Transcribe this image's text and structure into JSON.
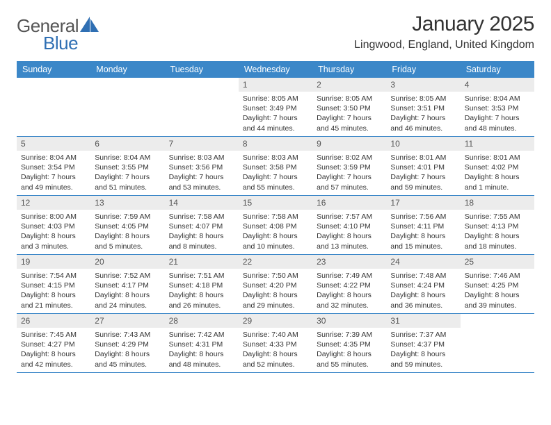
{
  "brand": {
    "word1": "General",
    "word2": "Blue"
  },
  "title": "January 2025",
  "location": "Lingwood, England, United Kingdom",
  "colors": {
    "header_bg": "#3b87c8",
    "header_text": "#ffffff",
    "daynum_bg": "#ececec",
    "daynum_text": "#555555",
    "body_text": "#333333",
    "row_border": "#3b87c8",
    "brand_gray": "#555555",
    "brand_blue": "#2f6fb3"
  },
  "day_names": [
    "Sunday",
    "Monday",
    "Tuesday",
    "Wednesday",
    "Thursday",
    "Friday",
    "Saturday"
  ],
  "weeks": [
    [
      null,
      null,
      null,
      {
        "n": "1",
        "sr": "8:05 AM",
        "ss": "3:49 PM",
        "dl": "7 hours and 44 minutes."
      },
      {
        "n": "2",
        "sr": "8:05 AM",
        "ss": "3:50 PM",
        "dl": "7 hours and 45 minutes."
      },
      {
        "n": "3",
        "sr": "8:05 AM",
        "ss": "3:51 PM",
        "dl": "7 hours and 46 minutes."
      },
      {
        "n": "4",
        "sr": "8:04 AM",
        "ss": "3:53 PM",
        "dl": "7 hours and 48 minutes."
      }
    ],
    [
      {
        "n": "5",
        "sr": "8:04 AM",
        "ss": "3:54 PM",
        "dl": "7 hours and 49 minutes."
      },
      {
        "n": "6",
        "sr": "8:04 AM",
        "ss": "3:55 PM",
        "dl": "7 hours and 51 minutes."
      },
      {
        "n": "7",
        "sr": "8:03 AM",
        "ss": "3:56 PM",
        "dl": "7 hours and 53 minutes."
      },
      {
        "n": "8",
        "sr": "8:03 AM",
        "ss": "3:58 PM",
        "dl": "7 hours and 55 minutes."
      },
      {
        "n": "9",
        "sr": "8:02 AM",
        "ss": "3:59 PM",
        "dl": "7 hours and 57 minutes."
      },
      {
        "n": "10",
        "sr": "8:01 AM",
        "ss": "4:01 PM",
        "dl": "7 hours and 59 minutes."
      },
      {
        "n": "11",
        "sr": "8:01 AM",
        "ss": "4:02 PM",
        "dl": "8 hours and 1 minute."
      }
    ],
    [
      {
        "n": "12",
        "sr": "8:00 AM",
        "ss": "4:03 PM",
        "dl": "8 hours and 3 minutes."
      },
      {
        "n": "13",
        "sr": "7:59 AM",
        "ss": "4:05 PM",
        "dl": "8 hours and 5 minutes."
      },
      {
        "n": "14",
        "sr": "7:58 AM",
        "ss": "4:07 PM",
        "dl": "8 hours and 8 minutes."
      },
      {
        "n": "15",
        "sr": "7:58 AM",
        "ss": "4:08 PM",
        "dl": "8 hours and 10 minutes."
      },
      {
        "n": "16",
        "sr": "7:57 AM",
        "ss": "4:10 PM",
        "dl": "8 hours and 13 minutes."
      },
      {
        "n": "17",
        "sr": "7:56 AM",
        "ss": "4:11 PM",
        "dl": "8 hours and 15 minutes."
      },
      {
        "n": "18",
        "sr": "7:55 AM",
        "ss": "4:13 PM",
        "dl": "8 hours and 18 minutes."
      }
    ],
    [
      {
        "n": "19",
        "sr": "7:54 AM",
        "ss": "4:15 PM",
        "dl": "8 hours and 21 minutes."
      },
      {
        "n": "20",
        "sr": "7:52 AM",
        "ss": "4:17 PM",
        "dl": "8 hours and 24 minutes."
      },
      {
        "n": "21",
        "sr": "7:51 AM",
        "ss": "4:18 PM",
        "dl": "8 hours and 26 minutes."
      },
      {
        "n": "22",
        "sr": "7:50 AM",
        "ss": "4:20 PM",
        "dl": "8 hours and 29 minutes."
      },
      {
        "n": "23",
        "sr": "7:49 AM",
        "ss": "4:22 PM",
        "dl": "8 hours and 32 minutes."
      },
      {
        "n": "24",
        "sr": "7:48 AM",
        "ss": "4:24 PM",
        "dl": "8 hours and 36 minutes."
      },
      {
        "n": "25",
        "sr": "7:46 AM",
        "ss": "4:25 PM",
        "dl": "8 hours and 39 minutes."
      }
    ],
    [
      {
        "n": "26",
        "sr": "7:45 AM",
        "ss": "4:27 PM",
        "dl": "8 hours and 42 minutes."
      },
      {
        "n": "27",
        "sr": "7:43 AM",
        "ss": "4:29 PM",
        "dl": "8 hours and 45 minutes."
      },
      {
        "n": "28",
        "sr": "7:42 AM",
        "ss": "4:31 PM",
        "dl": "8 hours and 48 minutes."
      },
      {
        "n": "29",
        "sr": "7:40 AM",
        "ss": "4:33 PM",
        "dl": "8 hours and 52 minutes."
      },
      {
        "n": "30",
        "sr": "7:39 AM",
        "ss": "4:35 PM",
        "dl": "8 hours and 55 minutes."
      },
      {
        "n": "31",
        "sr": "7:37 AM",
        "ss": "4:37 PM",
        "dl": "8 hours and 59 minutes."
      },
      null
    ]
  ],
  "labels": {
    "sunrise_prefix": "Sunrise: ",
    "sunset_prefix": "Sunset: ",
    "daylight_prefix": "Daylight: "
  }
}
